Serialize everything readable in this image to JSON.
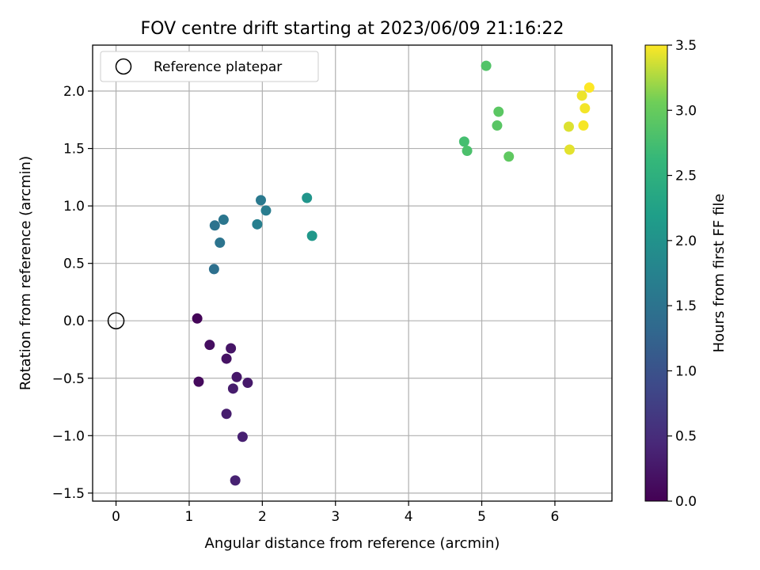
{
  "chart_data": {
    "type": "scatter",
    "title": "FOV centre drift starting at 2023/06/09 21:16:22",
    "xlabel": "Angular distance from reference (arcmin)",
    "ylabel": "Rotation from reference (arcmin)",
    "xlim": [
      -0.32,
      6.78
    ],
    "ylim": [
      -1.57,
      2.4
    ],
    "xticks": [
      "0",
      "1",
      "2",
      "3",
      "4",
      "5",
      "6"
    ],
    "yticks": [
      "−1.5",
      "−1.0",
      "−0.5",
      "0.0",
      "0.5",
      "1.0",
      "1.5",
      "2.0"
    ],
    "grid": true,
    "legend": {
      "placement": "top-left",
      "entries": [
        "Reference platepar"
      ]
    },
    "reference_point": {
      "x": 0,
      "y": 0,
      "marker": "open-circle"
    },
    "colorbar": {
      "label": "Hours from first FF file",
      "colormap": "viridis",
      "range": [
        0.0,
        3.5
      ],
      "ticks": [
        "0.0",
        "0.5",
        "1.0",
        "1.5",
        "2.0",
        "2.5",
        "3.0",
        "3.5"
      ]
    },
    "series": [
      {
        "points": [
          {
            "x": 1.11,
            "y": 0.02,
            "c": 0.05
          },
          {
            "x": 1.13,
            "y": -0.53,
            "c": 0.1
          },
          {
            "x": 1.28,
            "y": -0.21,
            "c": 0.15
          },
          {
            "x": 1.51,
            "y": -0.33,
            "c": 0.2
          },
          {
            "x": 1.57,
            "y": -0.24,
            "c": 0.22
          },
          {
            "x": 1.65,
            "y": -0.49,
            "c": 0.25
          },
          {
            "x": 1.8,
            "y": -0.54,
            "c": 0.27
          },
          {
            "x": 1.6,
            "y": -0.59,
            "c": 0.3
          },
          {
            "x": 1.51,
            "y": -0.81,
            "c": 0.32
          },
          {
            "x": 1.73,
            "y": -1.01,
            "c": 0.35
          },
          {
            "x": 1.63,
            "y": -1.39,
            "c": 0.37
          },
          {
            "x": 1.34,
            "y": 0.45,
            "c": 1.45
          },
          {
            "x": 1.35,
            "y": 0.83,
            "c": 1.5
          },
          {
            "x": 1.47,
            "y": 0.88,
            "c": 1.55
          },
          {
            "x": 1.42,
            "y": 0.68,
            "c": 1.52
          },
          {
            "x": 1.98,
            "y": 1.05,
            "c": 1.6
          },
          {
            "x": 2.05,
            "y": 0.96,
            "c": 1.65
          },
          {
            "x": 1.93,
            "y": 0.84,
            "c": 1.7
          },
          {
            "x": 2.61,
            "y": 1.07,
            "c": 2.05
          },
          {
            "x": 2.68,
            "y": 0.74,
            "c": 2.1
          },
          {
            "x": 4.76,
            "y": 1.56,
            "c": 2.75
          },
          {
            "x": 4.8,
            "y": 1.48,
            "c": 2.8
          },
          {
            "x": 5.06,
            "y": 2.22,
            "c": 2.85
          },
          {
            "x": 5.21,
            "y": 1.7,
            "c": 2.9
          },
          {
            "x": 5.23,
            "y": 1.82,
            "c": 2.92
          },
          {
            "x": 5.37,
            "y": 1.43,
            "c": 2.95
          },
          {
            "x": 6.19,
            "y": 1.69,
            "c": 3.4
          },
          {
            "x": 6.2,
            "y": 1.49,
            "c": 3.42
          },
          {
            "x": 6.37,
            "y": 1.96,
            "c": 3.45
          },
          {
            "x": 6.41,
            "y": 1.85,
            "c": 3.47
          },
          {
            "x": 6.39,
            "y": 1.7,
            "c": 3.48
          },
          {
            "x": 6.47,
            "y": 2.03,
            "c": 3.5
          }
        ]
      }
    ]
  }
}
